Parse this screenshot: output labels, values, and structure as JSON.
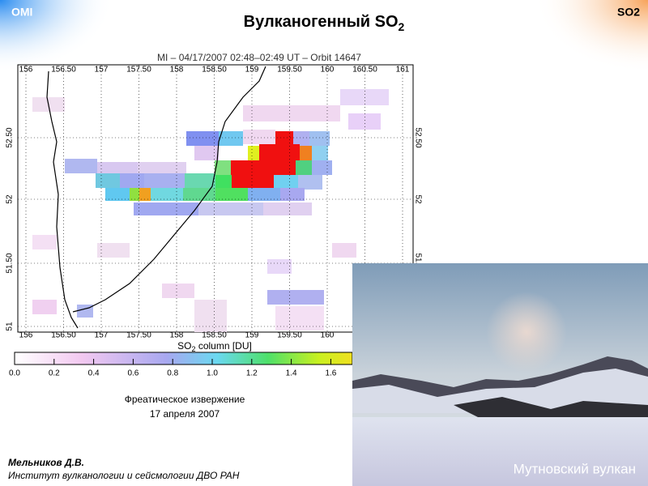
{
  "header": {
    "left": "OMI",
    "right": "SO2",
    "title": "Вулканогенный  SO",
    "title_sub": "2"
  },
  "map": {
    "title": "MI – 04/17/2007 02:48–02:49 UT – Orbit 14647",
    "lon_ticks": [
      "156",
      "156.50",
      "157",
      "157.50",
      "158",
      "158.50",
      "159",
      "159.50",
      "160",
      "160.50",
      "161"
    ],
    "lat_ticks": [
      "51",
      "51.50",
      "52",
      "52.50"
    ],
    "colorbar_label": "SO",
    "colorbar_label_sub": "2",
    "colorbar_unit": " column [DU]",
    "colorbar_ticks": [
      "0.0",
      "0.2",
      "0.4",
      "0.6",
      "0.8",
      "1.0",
      "1.2",
      "1.4",
      "1.6"
    ]
  },
  "caption": {
    "line1": "Фреатическое извержение",
    "line2": "17 апреля 2007"
  },
  "author": {
    "name": "Мельников Д.В.",
    "affiliation": "Институт вулканологии  и сейсмологии ДВО РАН"
  },
  "photo": {
    "caption": "Мутновский вулкан"
  }
}
